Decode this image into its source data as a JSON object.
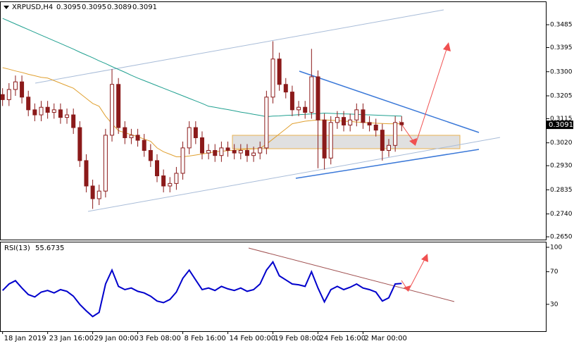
{
  "chart_data": [
    {
      "type": "candlestick",
      "title": "XRPUSD,H4",
      "ohlc_header": [
        0.3095,
        0.3095,
        0.3089,
        0.3091
      ],
      "last_price": 0.3091,
      "color": "#8b1a1a",
      "open": [
        0.321,
        0.319,
        0.323,
        0.326,
        0.32,
        0.315,
        0.313,
        0.316,
        0.314,
        0.315,
        0.312,
        0.313,
        0.308,
        0.295,
        0.285,
        0.28,
        0.283,
        0.305,
        0.325,
        0.308,
        0.304,
        0.305,
        0.303,
        0.299,
        0.295,
        0.289,
        0.285,
        0.286,
        0.29,
        0.3,
        0.308,
        0.304,
        0.298,
        0.299,
        0.297,
        0.3,
        0.299,
        0.298,
        0.299,
        0.297,
        0.298,
        0.3,
        0.32,
        0.335,
        0.325,
        0.322,
        0.315,
        0.316,
        0.314,
        0.328,
        0.311,
        0.296,
        0.31,
        0.312,
        0.309,
        0.311,
        0.315,
        0.31,
        0.309,
        0.307,
        0.299,
        0.301,
        0.31
      ],
      "high": [
        0.3235,
        0.3255,
        0.3285,
        0.3285,
        0.3225,
        0.3175,
        0.3185,
        0.3185,
        0.3175,
        0.3175,
        0.3155,
        0.3155,
        0.3105,
        0.2975,
        0.2875,
        0.2855,
        0.3075,
        0.331,
        0.3275,
        0.3105,
        0.3075,
        0.3075,
        0.3055,
        0.3015,
        0.2975,
        0.2915,
        0.2885,
        0.2925,
        0.3025,
        0.3105,
        0.3105,
        0.3065,
        0.3015,
        0.3015,
        0.3025,
        0.3025,
        0.3015,
        0.3015,
        0.3015,
        0.3005,
        0.3025,
        0.3225,
        0.342,
        0.3375,
        0.3275,
        0.3245,
        0.3185,
        0.3185,
        0.339,
        0.3305,
        0.3135,
        0.3125,
        0.3145,
        0.3145,
        0.3135,
        0.3175,
        0.3175,
        0.3125,
        0.3115,
        0.3095,
        0.3035,
        0.3125,
        0.3125
      ],
      "low": [
        0.3165,
        0.3165,
        0.3205,
        0.3175,
        0.3125,
        0.3105,
        0.3105,
        0.3115,
        0.3115,
        0.3095,
        0.3095,
        0.3055,
        0.2925,
        0.2825,
        0.276,
        0.2775,
        0.2805,
        0.3025,
        0.3055,
        0.3015,
        0.3015,
        0.3005,
        0.2965,
        0.2925,
        0.2865,
        0.2825,
        0.2825,
        0.2835,
        0.2875,
        0.2975,
        0.3015,
        0.2955,
        0.2955,
        0.2945,
        0.2945,
        0.2965,
        0.2955,
        0.2955,
        0.2945,
        0.2945,
        0.2955,
        0.2975,
        0.3175,
        0.3225,
        0.3195,
        0.3125,
        0.3125,
        0.3115,
        0.3115,
        0.292,
        0.2915,
        0.2935,
        0.3075,
        0.3065,
        0.3065,
        0.3085,
        0.3075,
        0.3065,
        0.3045,
        0.295,
        0.2965,
        0.2985,
        0.3066
      ],
      "close": [
        0.319,
        0.323,
        0.326,
        0.32,
        0.315,
        0.313,
        0.316,
        0.314,
        0.315,
        0.312,
        0.313,
        0.308,
        0.295,
        0.285,
        0.28,
        0.283,
        0.305,
        0.325,
        0.308,
        0.304,
        0.305,
        0.303,
        0.299,
        0.295,
        0.289,
        0.285,
        0.286,
        0.29,
        0.3,
        0.308,
        0.304,
        0.298,
        0.299,
        0.297,
        0.3,
        0.299,
        0.298,
        0.299,
        0.297,
        0.298,
        0.3,
        0.32,
        0.335,
        0.325,
        0.322,
        0.315,
        0.316,
        0.314,
        0.328,
        0.311,
        0.296,
        0.31,
        0.312,
        0.309,
        0.311,
        0.315,
        0.31,
        0.309,
        0.307,
        0.299,
        0.301,
        0.31,
        0.3091
      ],
      "lines": [
        {
          "color": "#20a090",
          "values": [
            0.351,
            0.3499,
            0.3488,
            0.3477,
            0.3466,
            0.3455,
            0.3444,
            0.3433,
            0.3422,
            0.3411,
            0.34,
            0.3389,
            0.3377,
            0.3366,
            0.3355,
            0.3343,
            0.3332,
            0.332,
            0.3309,
            0.3298,
            0.3286,
            0.3275,
            0.3265,
            0.3255,
            0.3245,
            0.3235,
            0.3225,
            0.3215,
            0.3205,
            0.3195,
            0.3185,
            0.3175,
            0.3164,
            0.316,
            0.3155,
            0.3151,
            0.3146,
            0.3141,
            0.3137,
            0.3132,
            0.3128,
            0.3123,
            0.3125,
            0.3126,
            0.3128,
            0.3129,
            0.3131,
            0.3132,
            0.3134,
            0.3135,
            0.3137,
            0.3136,
            0.3135,
            0.3134,
            0.3133,
            0.3132,
            0.3131,
            0.313,
            0.3129,
            0.3128,
            0.3127,
            0.3126,
            0.3125
          ]
        },
        {
          "color": "#e0a030",
          "values": [
            0.3316,
            0.331,
            0.3303,
            0.3297,
            0.329,
            0.3284,
            0.3278,
            0.3275,
            0.3265,
            0.3255,
            0.3245,
            0.3235,
            0.3215,
            0.3195,
            0.3175,
            0.3164,
            0.3125,
            0.3095,
            0.3068,
            0.306,
            0.3052,
            0.3044,
            0.3035,
            0.3026,
            0.3,
            0.2985,
            0.2975,
            0.2965,
            0.2965,
            0.2968,
            0.2972,
            0.2976,
            0.298,
            0.2985,
            0.2987,
            0.2989,
            0.2991,
            0.2993,
            0.2995,
            0.2996,
            0.2998,
            0.3015,
            0.3035,
            0.3055,
            0.3075,
            0.3095,
            0.31,
            0.3105,
            0.3108,
            0.311,
            0.311,
            0.3109,
            0.3107,
            0.3105,
            0.3104,
            0.3102,
            0.31,
            0.3099,
            0.3097,
            0.3096,
            0.3095,
            0.3095,
            0.3095
          ]
        }
      ],
      "xlim": [
        -0.4,
        84.4
      ],
      "ylim": [
        0.2639,
        0.3574
      ],
      "yticks": [
        0.3485,
        0.3395,
        {
          "value": 0.33,
          "label": "0.3300"
        },
        0.3205,
        0.3115,
        {
          "value": 0.302,
          "label": "0.3020"
        },
        {
          "value": 0.293,
          "label": "0.2930"
        },
        0.2835,
        {
          "value": 0.274,
          "label": "0.2740"
        },
        {
          "value": 0.265,
          "label": "0.2650"
        }
      ]
    },
    {
      "type": "line",
      "title": "RSI(13)",
      "header_value": 55.6735,
      "color": "#0000cc",
      "values": [
        47,
        55,
        59,
        50,
        42,
        39,
        45,
        47,
        44,
        48,
        46,
        40,
        30,
        22,
        15,
        20,
        55,
        72,
        52,
        48,
        50,
        46,
        44,
        40,
        34,
        32,
        36,
        45,
        62,
        72,
        60,
        48,
        50,
        47,
        52,
        49,
        47,
        50,
        46,
        48,
        55,
        72,
        82,
        65,
        60,
        55,
        54,
        52,
        70,
        50,
        33,
        48,
        52,
        48,
        51,
        55,
        50,
        48,
        45,
        34,
        38,
        55,
        55.6735
      ],
      "xlim": [
        -0.4,
        84.4
      ],
      "ylim": [
        -3,
        106
      ],
      "yticks": [
        100,
        70,
        30
      ],
      "xticks": [
        {
          "value": 0,
          "label": "18 Jan 2019"
        },
        {
          "value": 7,
          "label": "23 Jan 16:00"
        },
        {
          "value": 14,
          "label": "29 Jan 00:00"
        },
        {
          "value": 21,
          "label": "3 Feb 08:00"
        },
        {
          "value": 28,
          "label": "8 Feb 16:00"
        },
        {
          "value": 35,
          "label": "14 Feb 00:00"
        },
        {
          "value": 42,
          "label": "19 Feb 08:00"
        },
        {
          "value": 49,
          "label": "24 Feb 16:00"
        },
        {
          "value": 56,
          "label": "2 Mar 00:00"
        }
      ]
    }
  ]
}
